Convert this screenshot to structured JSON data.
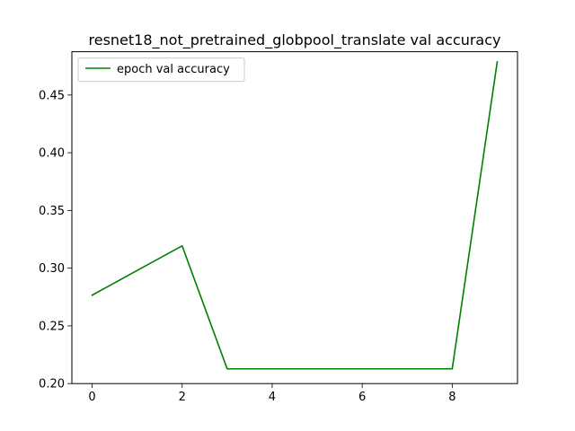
{
  "chart_data": {
    "type": "line",
    "title": "resnet18_not_pretrained_globpool_translate val accuracy",
    "xlabel": "",
    "ylabel": "",
    "xlim": [
      -0.45,
      9.45
    ],
    "ylim": [
      0.2,
      0.4875
    ],
    "xticks": [
      0,
      2,
      4,
      6,
      8
    ],
    "yticks": [
      0.2,
      0.25,
      0.3,
      0.35,
      0.4,
      0.45
    ],
    "xtick_labels": [
      "0",
      "2",
      "4",
      "6",
      "8"
    ],
    "ytick_labels": [
      "0.20",
      "0.25",
      "0.30",
      "0.35",
      "0.40",
      "0.45"
    ],
    "legend_position": "upper left",
    "grid": false,
    "series": [
      {
        "name": "epoch val accuracy",
        "color": "#008000",
        "x": [
          0,
          1,
          2,
          3,
          4,
          5,
          6,
          7,
          8,
          9
        ],
        "values": [
          0.2766,
          0.298,
          0.3193,
          0.2128,
          0.2128,
          0.2128,
          0.2128,
          0.2128,
          0.2128,
          0.4787
        ]
      }
    ]
  }
}
